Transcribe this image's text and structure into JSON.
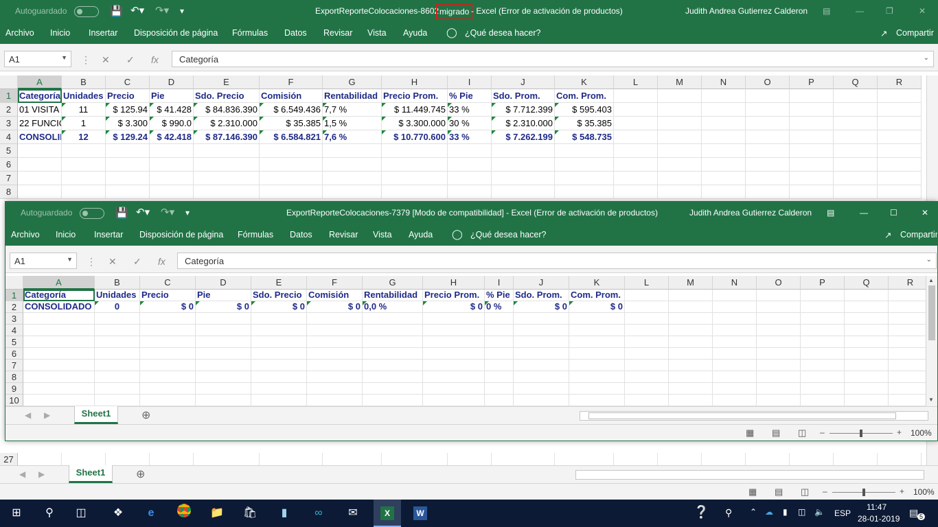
{
  "back_window": {
    "autosave_label": "Autoguardado",
    "title_prefix": "ExportReporteColocaciones-8602",
    "title_highlight": "migrado",
    "title_suffix": "-  Excel (Error de activación de productos)",
    "user": "Judith Andrea Gutierrez Calderon",
    "menu": [
      "Archivo",
      "Inicio",
      "Insertar",
      "Disposición de página",
      "Fórmulas",
      "Datos",
      "Revisar",
      "Vista",
      "Ayuda"
    ],
    "tell_me": "¿Qué desea hacer?",
    "share": "Compartir",
    "name_box": "A1",
    "formula": "Categoría",
    "columns": [
      "A",
      "B",
      "C",
      "D",
      "E",
      "F",
      "G",
      "H",
      "I",
      "J",
      "K",
      "L",
      "M",
      "N",
      "O",
      "P",
      "Q",
      "R"
    ],
    "rows": [
      "1",
      "2",
      "3",
      "4",
      "5",
      "6",
      "7",
      "8"
    ],
    "bottom_row": "27",
    "headers": [
      "Categoría",
      "Unidades",
      "Precio",
      "Pie",
      "Sdo. Precio",
      "Comisión",
      "Rentabilidad",
      "Precio Prom.",
      "% Pie",
      "Sdo. Prom.",
      "Com. Prom."
    ],
    "data": [
      [
        "01 VISITA",
        "11",
        "$ 125.94",
        "$ 41.428",
        "$ 84.836.390",
        "$ 6.549.436",
        "7,7 %",
        "$ 11.449.745",
        "33 %",
        "$ 7.712.399",
        "$ 595.403"
      ],
      [
        "22 FUNCIC",
        "1",
        "$ 3.300",
        "$ 990.0",
        "$ 2.310.000",
        "$ 35.385",
        "1,5 %",
        "$ 3.300.000",
        "30 %",
        "$ 2.310.000",
        "$ 35.385"
      ],
      [
        "CONSOLID",
        "12",
        "$ 129.24",
        "$ 42.418",
        "$ 87.146.390",
        "$ 6.584.821",
        "7,6 %",
        "$ 10.770.600",
        "33 %",
        "$ 7.262.199",
        "$ 548.735"
      ]
    ],
    "sheet_tab": "Sheet1",
    "zoom": "100%"
  },
  "front_window": {
    "autosave_label": "Autoguardado",
    "title": "ExportReporteColocaciones-7379  [Modo de compatibilidad]  -  Excel (Error de activación de productos)",
    "user": "Judith Andrea Gutierrez Calderon",
    "menu": [
      "Archivo",
      "Inicio",
      "Insertar",
      "Disposición de página",
      "Fórmulas",
      "Datos",
      "Revisar",
      "Vista",
      "Ayuda"
    ],
    "tell_me": "¿Qué desea hacer?",
    "share": "Compartir",
    "name_box": "A1",
    "formula": "Categoría",
    "columns": [
      "A",
      "B",
      "C",
      "D",
      "E",
      "F",
      "G",
      "H",
      "I",
      "J",
      "K",
      "L",
      "M",
      "N",
      "O",
      "P",
      "Q",
      "R"
    ],
    "rows": [
      "1",
      "2",
      "3",
      "4",
      "5",
      "6",
      "7",
      "8",
      "9",
      "10"
    ],
    "headers": [
      "Categoría",
      "Unidades",
      "Precio",
      "Pie",
      "Sdo. Precio",
      "Comisión",
      "Rentabilidad",
      "Precio Prom.",
      "% Pie",
      "Sdo. Prom.",
      "Com. Prom."
    ],
    "data": [
      [
        "CONSOLIDADO",
        "0",
        "$ 0",
        "$ 0",
        "$ 0",
        "$ 0",
        "0,0 %",
        "$ 0",
        "0 %",
        "$ 0",
        "$ 0"
      ]
    ],
    "sheet_tab": "Sheet1",
    "zoom": "100%"
  },
  "taskbar": {
    "lang": "ESP",
    "time": "11:47",
    "date": "28-01-2019",
    "notif_count": "5"
  },
  "colors": {
    "excel_green": "#217346",
    "header_blue": "#1f2a87",
    "taskbar": "#0c1a35"
  }
}
